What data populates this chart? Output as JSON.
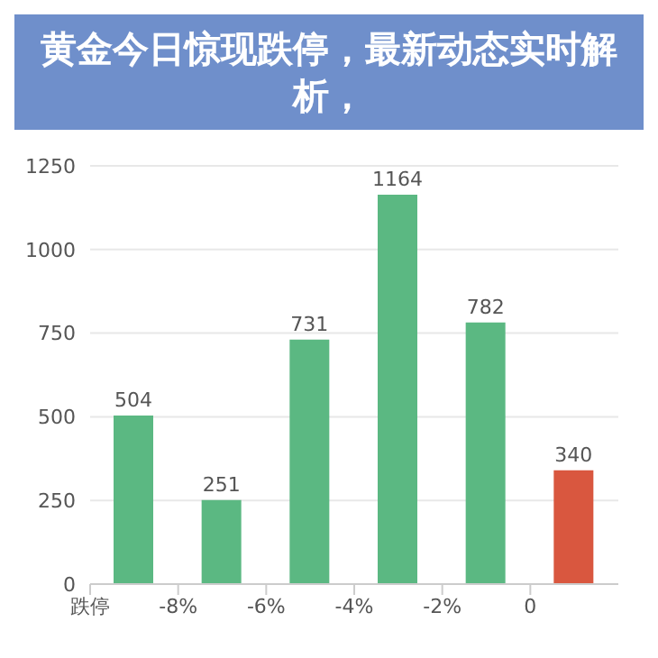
{
  "chart_data": {
    "type": "bar",
    "title": "黄金今日惊现跌停，最新动态实时解析，",
    "x": [
      -9,
      -7,
      -5,
      -3,
      -1,
      1
    ],
    "values": [
      504,
      251,
      731,
      1164,
      782,
      340
    ],
    "colors": [
      "#5bb882",
      "#5bb882",
      "#5bb882",
      "#5bb882",
      "#5bb882",
      "#d9573f"
    ],
    "xlim": [
      -10,
      2
    ],
    "xticks": [
      {
        "value": -10,
        "label": "跌停"
      },
      {
        "value": -8,
        "label": "-8%"
      },
      {
        "value": -6,
        "label": "-6%"
      },
      {
        "value": -4,
        "label": "-4%"
      },
      {
        "value": -2,
        "label": "-2%"
      },
      0
    ],
    "ylim": [
      0,
      1250
    ],
    "yticks": [
      0,
      250,
      500,
      750,
      1000,
      1250
    ],
    "grid": "y",
    "data_labels": true
  }
}
